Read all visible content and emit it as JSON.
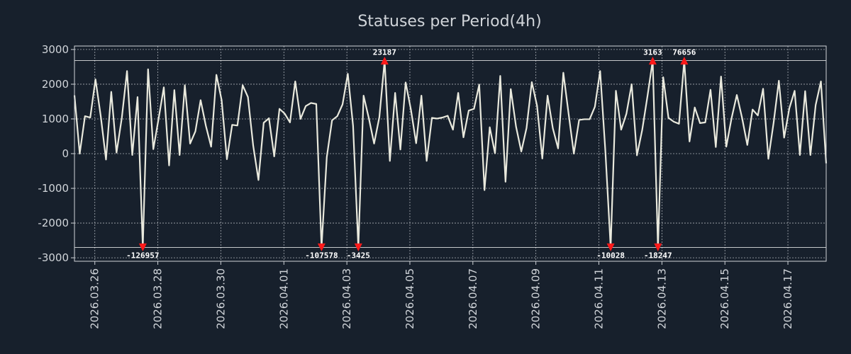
{
  "chart_data": {
    "type": "line",
    "title": "Statuses per Period(4h)",
    "xlabel": "",
    "ylabel": "",
    "ylim": [
      -3100,
      3100
    ],
    "xlim": [
      0,
      1
    ],
    "grid": true,
    "colors": {
      "background": "#17202c",
      "line": "#e9e9dd",
      "marker": "#ff1a1a",
      "grid": "#a8adb4",
      "text": "#d0d4d9",
      "clip_line": "#ffffff"
    },
    "clip_levels": {
      "upper": 2680,
      "lower": -2700
    },
    "y_ticks": [
      3000,
      2000,
      1000,
      0,
      -1000,
      -2000,
      -3000
    ],
    "y_tick_labels": [
      "3000",
      "2000",
      "1000",
      "0",
      "-1000",
      "-2000",
      "-3000"
    ],
    "x_ticks": [
      {
        "label": "2026.03.26",
        "pos": 0.0271
      },
      {
        "label": "2026.03.28",
        "pos": 0.1109
      },
      {
        "label": "2026.03.30",
        "pos": 0.1947
      },
      {
        "label": "2026.04.01",
        "pos": 0.2786
      },
      {
        "label": "2026.04.03",
        "pos": 0.3624
      },
      {
        "label": "2026.04.05",
        "pos": 0.4462
      },
      {
        "label": "2026.04.07",
        "pos": 0.53
      },
      {
        "label": "2026.04.09",
        "pos": 0.6138
      },
      {
        "label": "2026.04.11",
        "pos": 0.6976
      },
      {
        "label": "2026.04.13",
        "pos": 0.7815
      },
      {
        "label": "2026.04.15",
        "pos": 0.8653
      },
      {
        "label": "2026.04.17",
        "pos": 0.9491
      }
    ],
    "series": [
      {
        "name": "Statuses per Period(4h)",
        "values": [
          1680,
          0,
          1080,
          1040,
          2140,
          1080,
          -170,
          1780,
          30,
          1020,
          2380,
          -40,
          1630,
          -2700,
          2430,
          130,
          1000,
          1910,
          -340,
          1830,
          -40,
          1970,
          290,
          640,
          1540,
          800,
          200,
          2270,
          1540,
          -160,
          830,
          810,
          1970,
          1630,
          230,
          -760,
          890,
          1020,
          -80,
          1290,
          1150,
          900,
          2080,
          1000,
          1370,
          1460,
          1430,
          -2700,
          -100,
          960,
          1080,
          1420,
          2300,
          800,
          -2700,
          1670,
          1020,
          290,
          1050,
          2680,
          -210,
          1750,
          120,
          2050,
          1270,
          300,
          1670,
          -210,
          1030,
          1010,
          1040,
          1090,
          690,
          1750,
          470,
          1240,
          1290,
          1990,
          -1050,
          760,
          10,
          2240,
          -810,
          1860,
          780,
          60,
          740,
          2060,
          1380,
          -140,
          1670,
          730,
          150,
          2330,
          1150,
          0,
          970,
          990,
          990,
          1350,
          2380,
          60,
          -2700,
          1810,
          690,
          1150,
          2000,
          -50,
          680,
          1650,
          2680,
          -2700,
          2200,
          1030,
          920,
          860,
          2680,
          350,
          1330,
          880,
          900,
          1840,
          190,
          2220,
          200,
          1020,
          1690,
          1030,
          250,
          1270,
          1100,
          1870,
          -150,
          890,
          2100,
          460,
          1310,
          1810,
          -40,
          1800,
          -40,
          1400,
          2080,
          -280
        ]
      }
    ],
    "annotations": [
      {
        "label": "-126957",
        "index": 13,
        "value": -2700,
        "position": "below"
      },
      {
        "label": "-107578",
        "index": 47,
        "value": -2700,
        "position": "below"
      },
      {
        "label": "-3425",
        "index": 54,
        "value": -2700,
        "position": "below"
      },
      {
        "label": "23187",
        "index": 59,
        "value": 2680,
        "position": "above"
      },
      {
        "label": "-10028",
        "index": 102,
        "value": -2700,
        "position": "below"
      },
      {
        "label": "3163",
        "index": 110,
        "value": 2680,
        "position": "above"
      },
      {
        "label": "-18247",
        "index": 111,
        "value": -2700,
        "position": "below"
      },
      {
        "label": "76656",
        "index": 116,
        "value": 2680,
        "position": "above"
      }
    ]
  }
}
